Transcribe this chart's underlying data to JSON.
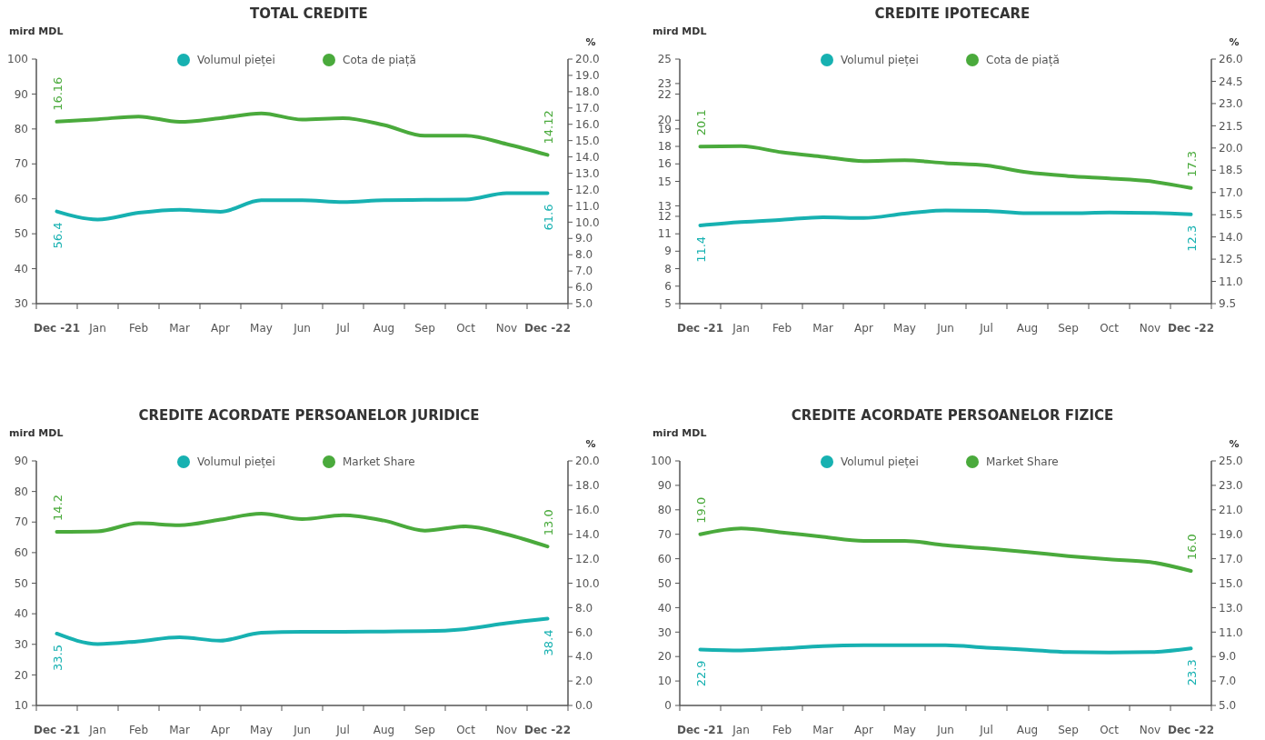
{
  "chart_data": [
    {
      "type": "line",
      "title": "TOTAL CREDITE",
      "ylabel": "mird MDL",
      "y2label": "%",
      "legend": "top",
      "categories": [
        "Dec -21",
        "Jan",
        "Feb",
        "Mar",
        "Apr",
        "May",
        "Jun",
        "Jul",
        "Aug",
        "Sep",
        "Oct",
        "Nov",
        "Dec -22"
      ],
      "ylim": [
        30,
        100
      ],
      "yticks": [
        30,
        40,
        50,
        60,
        70,
        80,
        90,
        100
      ],
      "y2lim": [
        5,
        20
      ],
      "y2ticks": [
        {
          "value": 5,
          "label": "5.0"
        },
        {
          "value": 6,
          "label": "6.0"
        },
        {
          "value": 7,
          "label": "7.0"
        },
        {
          "value": 8,
          "label": "8.0"
        },
        {
          "value": 9,
          "label": "9.0"
        },
        {
          "value": 10,
          "label": "10.0"
        },
        {
          "value": 11,
          "label": "11.0"
        },
        {
          "value": 12,
          "label": "12.0"
        },
        {
          "value": 13,
          "label": "13.0"
        },
        {
          "value": 14,
          "label": "14.0"
        },
        {
          "value": 15,
          "label": "15.0"
        },
        {
          "value": 16,
          "label": "16.0"
        },
        {
          "value": 17,
          "label": "17.0"
        },
        {
          "value": 18,
          "label": "18.0"
        },
        {
          "value": 19,
          "label": "19.0"
        },
        {
          "value": 20,
          "label": "20.0"
        }
      ],
      "series": [
        {
          "name": "Volumul pieței",
          "color": "#17b1b1",
          "values": [
            56.4,
            54.1,
            56.0,
            56.9,
            56.3,
            59.6,
            59.6,
            59.1,
            59.6,
            59.7,
            59.8,
            61.6,
            61.6
          ],
          "value_labels": [
            "56.4",
            null,
            null,
            null,
            null,
            null,
            null,
            null,
            null,
            null,
            null,
            null,
            "61.6"
          ]
        },
        {
          "name": "Cota de piață",
          "color": "#4aaa3c",
          "axis": "y2",
          "values": [
            16.16,
            16.31,
            16.48,
            16.15,
            16.38,
            16.67,
            16.29,
            16.38,
            15.96,
            15.3,
            15.3,
            14.79,
            14.12
          ],
          "value_labels": [
            "16.16",
            null,
            null,
            null,
            null,
            null,
            null,
            null,
            null,
            null,
            null,
            null,
            "14.12"
          ]
        }
      ]
    },
    {
      "type": "line",
      "title": "CREDITE IPOTECARE",
      "ylabel": "mird MDL",
      "y2label": "%",
      "legend": "top",
      "categories": [
        "Dec -21",
        "Jan",
        "Feb",
        "Mar",
        "Apr",
        "May",
        "Jun",
        "Jul",
        "Aug",
        "Sep",
        "Oct",
        "Nov",
        "Dec -22"
      ],
      "ylim": [
        5,
        25
      ],
      "yticks": [
        5,
        {
          "value": 6.43,
          "label": "6"
        },
        {
          "value": 7.86,
          "label": "8"
        },
        {
          "value": 9.29,
          "label": "9"
        },
        {
          "value": 10.71,
          "label": "11"
        },
        {
          "value": 12.14,
          "label": "12"
        },
        13,
        15,
        {
          "value": 16.43,
          "label": "16"
        },
        {
          "value": 17.86,
          "label": "18"
        },
        {
          "value": 19.29,
          "label": "19"
        },
        20,
        {
          "value": 22.14,
          "label": "22"
        },
        23,
        25
      ],
      "y2lim": [
        9.5,
        26
      ],
      "y2ticks": [
        9.5,
        {
          "value": 11,
          "label": "11.0"
        },
        12.5,
        {
          "value": 14,
          "label": "14.0"
        },
        15.5,
        {
          "value": 17,
          "label": "17.0"
        },
        18.5,
        {
          "value": 20,
          "label": "20.0"
        },
        21.5,
        {
          "value": 23,
          "label": "23.0"
        },
        24.5,
        {
          "value": 26,
          "label": "26.0"
        }
      ],
      "series": [
        {
          "name": "Volumul pieței",
          "color": "#17b1b1",
          "values": [
            11.4,
            11.67,
            11.86,
            12.06,
            12.0,
            12.36,
            12.62,
            12.59,
            12.39,
            12.39,
            12.45,
            12.42,
            12.3
          ],
          "value_labels": [
            "11.4",
            null,
            null,
            null,
            null,
            null,
            null,
            null,
            null,
            null,
            null,
            null,
            "12.3"
          ]
        },
        {
          "name": "Cota de piață",
          "color": "#4aaa3c",
          "axis": "y2",
          "values": [
            20.1,
            20.12,
            19.71,
            19.41,
            19.12,
            19.17,
            18.98,
            18.82,
            18.36,
            18.11,
            17.95,
            17.76,
            17.3
          ],
          "value_labels": [
            "20.1",
            null,
            null,
            null,
            null,
            null,
            null,
            null,
            null,
            null,
            null,
            null,
            "17.3"
          ]
        }
      ]
    },
    {
      "type": "line",
      "title": "CREDITE ACORDATE PERSOANELOR JURIDICE",
      "ylabel": "mird MDL",
      "y2label": "%",
      "legend": "top",
      "categories": [
        "Dec -21",
        "Jan",
        "Feb",
        "Mar",
        "Apr",
        "May",
        "Jun",
        "Jul",
        "Aug",
        "Sep",
        "Oct",
        "Nov",
        "Dec -22"
      ],
      "ylim": [
        10,
        90
      ],
      "yticks": [
        10,
        20,
        30,
        40,
        50,
        60,
        70,
        80,
        90
      ],
      "y2lim": [
        0,
        20
      ],
      "y2ticks": [
        {
          "value": 0,
          "label": "0.0"
        },
        {
          "value": 2,
          "label": "2.0"
        },
        {
          "value": 4,
          "label": "4.0"
        },
        {
          "value": 6,
          "label": "6.0"
        },
        {
          "value": 8,
          "label": "8.0"
        },
        {
          "value": 10,
          "label": "10.0"
        },
        {
          "value": 12,
          "label": "12.0"
        },
        {
          "value": 14,
          "label": "14.0"
        },
        {
          "value": 16,
          "label": "16.0"
        },
        {
          "value": 18,
          "label": "18.0"
        },
        {
          "value": 20,
          "label": "20.0"
        }
      ],
      "series": [
        {
          "name": "Volumul pieței",
          "color": "#17b1b1",
          "values": [
            33.5,
            30.1,
            31.0,
            32.3,
            31.2,
            33.8,
            34.1,
            34.1,
            34.2,
            34.3,
            35.0,
            36.9,
            38.4
          ],
          "value_labels": [
            "33.5",
            null,
            null,
            null,
            null,
            null,
            null,
            null,
            null,
            null,
            null,
            null,
            "38.4"
          ]
        },
        {
          "name": "Market Share",
          "color": "#4aaa3c",
          "axis": "y2",
          "values": [
            14.2,
            14.24,
            14.9,
            14.74,
            15.2,
            15.68,
            15.24,
            15.56,
            15.12,
            14.3,
            14.65,
            14.0,
            13.0
          ],
          "value_labels": [
            "14.2",
            null,
            null,
            null,
            null,
            null,
            null,
            null,
            null,
            null,
            null,
            null,
            "13.0"
          ]
        }
      ]
    },
    {
      "type": "line",
      "title": "CREDITE ACORDATE PERSOANELOR FIZICE",
      "ylabel": "mird MDL",
      "y2label": "%",
      "legend": "top",
      "categories": [
        "Dec -21",
        "Jan",
        "Feb",
        "Mar",
        "Apr",
        "May",
        "Jun",
        "Jul",
        "Aug",
        "Sep",
        "Oct",
        "Nov",
        "Dec -22"
      ],
      "ylim": [
        0,
        100
      ],
      "yticks": [
        0,
        10,
        20,
        30,
        40,
        50,
        60,
        70,
        80,
        90,
        100
      ],
      "y2lim": [
        5,
        25
      ],
      "y2ticks": [
        {
          "value": 5,
          "label": "5.0"
        },
        {
          "value": 7,
          "label": "7.0"
        },
        {
          "value": 9,
          "label": "9.0"
        },
        {
          "value": 11,
          "label": "11.0"
        },
        {
          "value": 13,
          "label": "13.0"
        },
        {
          "value": 15,
          "label": "15.0"
        },
        {
          "value": 17,
          "label": "17.0"
        },
        {
          "value": 19,
          "label": "19.0"
        },
        {
          "value": 21,
          "label": "21.0"
        },
        {
          "value": 23,
          "label": "23.0"
        },
        {
          "value": 25,
          "label": "25.0"
        }
      ],
      "series": [
        {
          "name": "Volumul pieței",
          "color": "#17b1b1",
          "values": [
            22.9,
            22.5,
            23.3,
            24.3,
            24.6,
            24.6,
            24.6,
            23.6,
            22.8,
            21.8,
            21.7,
            21.8,
            23.3
          ],
          "value_labels": [
            "22.9",
            null,
            null,
            null,
            null,
            null,
            null,
            null,
            null,
            null,
            null,
            null,
            "23.3"
          ]
        },
        {
          "name": "Market Share",
          "color": "#4aaa3c",
          "axis": "y2",
          "values": [
            19.0,
            19.48,
            19.15,
            18.79,
            18.46,
            18.46,
            18.1,
            17.84,
            17.55,
            17.22,
            16.95,
            16.73,
            16.0
          ],
          "value_labels": [
            "19.0",
            null,
            null,
            null,
            null,
            null,
            null,
            null,
            null,
            null,
            null,
            null,
            "16.0"
          ]
        }
      ]
    }
  ]
}
